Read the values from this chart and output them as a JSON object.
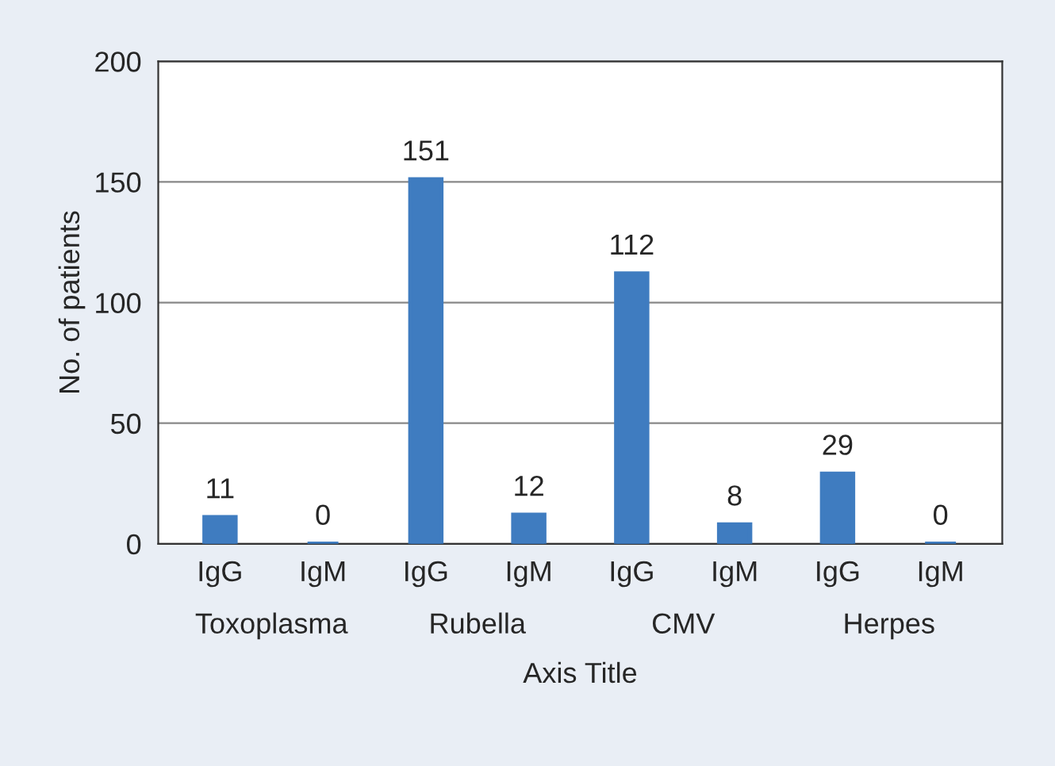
{
  "chart_data": {
    "type": "bar",
    "xlabel": "Axis Title",
    "ylabel": "No. of patients",
    "categories": [
      "IgG",
      "IgM",
      "IgG",
      "IgM",
      "IgG",
      "IgM",
      "IgG",
      "IgM"
    ],
    "values": [
      11,
      0,
      151,
      12,
      112,
      8,
      29,
      0
    ],
    "color": "#3f7cc0",
    "ylim": [
      0,
      200
    ],
    "yticks": [
      0,
      50,
      100,
      150,
      200
    ],
    "grid": "y",
    "data_labels": true,
    "annotations": [
      "Toxoplasma",
      "Rubella",
      "CMV",
      "Herpes"
    ]
  }
}
